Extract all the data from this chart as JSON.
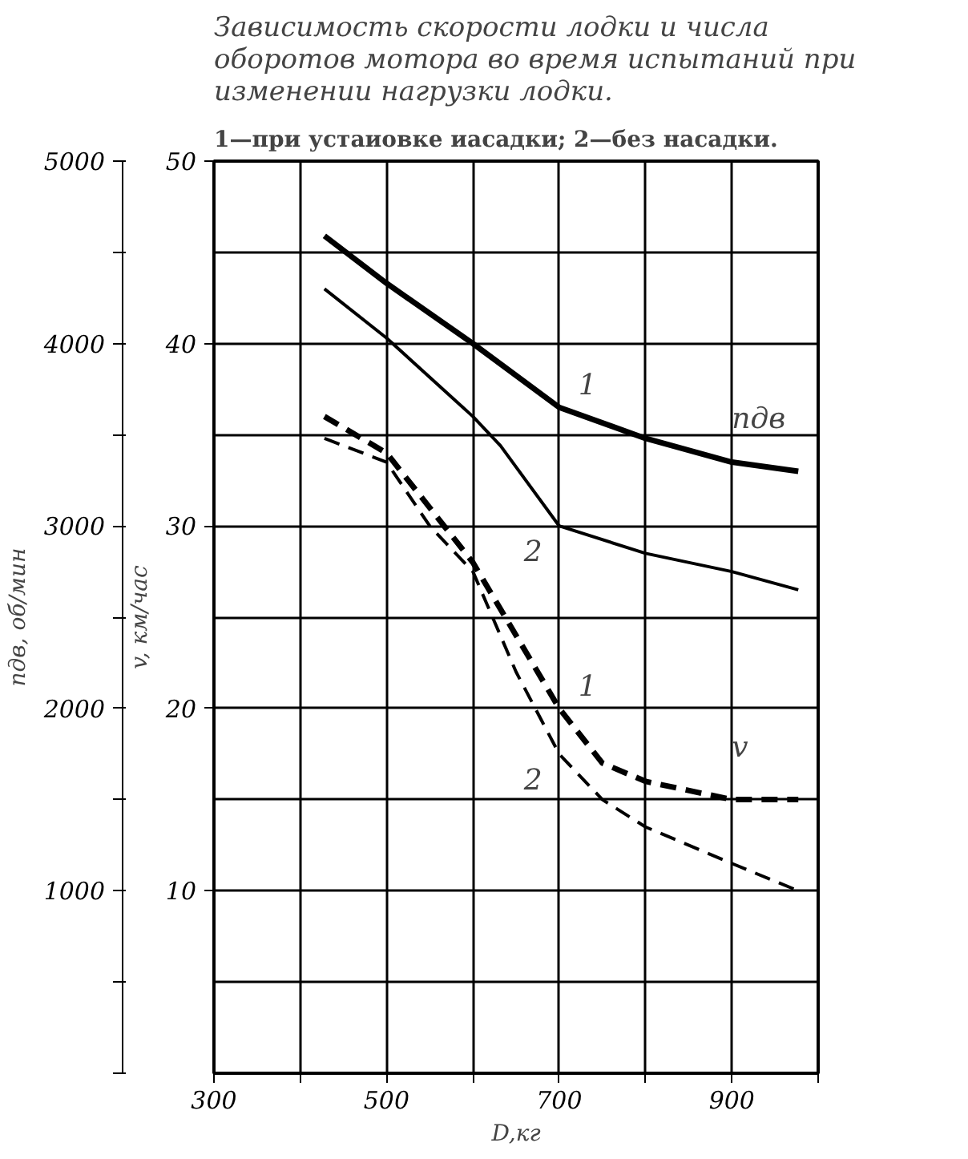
{
  "chart_data": {
    "type": "line",
    "title": "Зависимость скорости лодки и числа оборотов мотора во время испытаний при изменении нагрузки лодки.",
    "subtitle": "1—при устаиовке иасадки; 2—без насадки.",
    "xlabel": "D,кг",
    "ylabel": "nдв, об/мин",
    "y2label": "v, км/час",
    "xlim": [
      300,
      1000
    ],
    "xticks": [
      300,
      {
        "value": 400,
        "label": null
      },
      500,
      {
        "value": 600,
        "label": null
      },
      700,
      {
        "value": 800,
        "label": null
      },
      900,
      {
        "value": 1000,
        "label": null
      }
    ],
    "ylim": [
      0,
      5000
    ],
    "yticks": [
      {
        "value": 0,
        "label": null
      },
      {
        "value": 500,
        "label": null
      },
      1000,
      {
        "value": 1500,
        "label": null
      },
      2000,
      {
        "value": 2500,
        "label": null
      },
      3000,
      {
        "value": 3500,
        "label": null
      },
      4000,
      {
        "value": 4500,
        "label": null
      },
      5000
    ],
    "y2lim": [
      0,
      50
    ],
    "y2ticks": [
      10,
      20,
      30,
      40,
      50
    ],
    "grid": true,
    "line_style": "solid",
    "series": [
      {
        "name": "1",
        "color": "#000000",
        "x": [
          428,
          500,
          600,
          700,
          800,
          900,
          977
        ],
        "values": [
          4590,
          4330,
          4000,
          3650,
          3480,
          3350,
          3300
        ]
      },
      {
        "name": "2",
        "color": "#000000",
        "x": [
          428,
          500,
          600,
          632,
          700,
          800,
          900,
          977
        ],
        "values": [
          4300,
          4030,
          3600,
          3440,
          3000,
          2850,
          2750,
          2650
        ]
      },
      {
        "name": "1",
        "color": "#000000",
        "axis": "y2",
        "line_style": "dashed",
        "x": [
          428,
          500,
          600,
          650,
          700,
          750,
          800,
          900,
          977
        ],
        "values": [
          36,
          34,
          28,
          24,
          20,
          17,
          16,
          15,
          15
        ]
      },
      {
        "name": "2",
        "color": "#000000",
        "axis": "y2",
        "line_style": "dashed",
        "x": [
          428,
          500,
          550,
          600,
          650,
          700,
          750,
          800,
          900,
          977
        ],
        "values": [
          34.8,
          33.5,
          30,
          27.5,
          22,
          17.5,
          15,
          13.5,
          11.5,
          10
        ]
      }
    ],
    "annotations": [
      "nдв",
      "v"
    ]
  }
}
